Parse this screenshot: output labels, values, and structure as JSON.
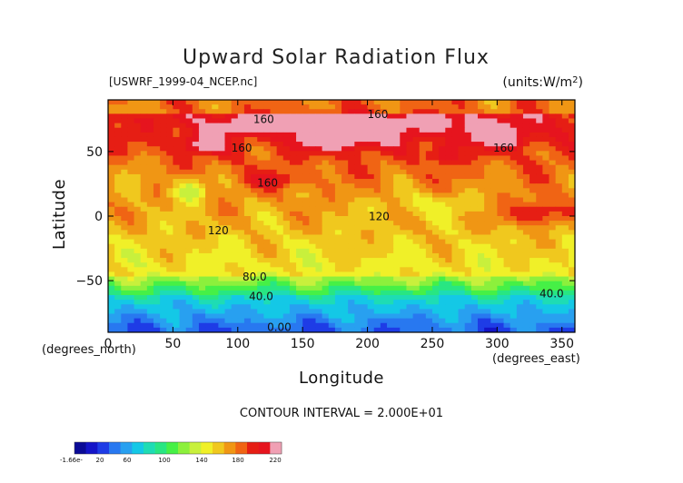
{
  "chart_data": {
    "type": "heatmap",
    "title": "Upward Solar Radiation Flux",
    "subtitle_left": "[USWRF_1999-04_NCEP.nc]",
    "subtitle_right": "(units:W/m^2)",
    "xlabel": "Longitude",
    "ylabel": "Latitude",
    "x_unit_label": "(degrees_east)",
    "y_unit_label": "(degrees_north)",
    "xlim": [
      0,
      360
    ],
    "ylim": [
      -90,
      90
    ],
    "x_ticks": [
      0,
      50,
      100,
      150,
      200,
      250,
      300,
      350
    ],
    "x_tick_labels": [
      "0",
      "50",
      "100",
      "150",
      "200",
      "250",
      "300",
      "350"
    ],
    "y_ticks": [
      -50,
      0,
      50
    ],
    "y_tick_labels": [
      "−50",
      "0",
      "50"
    ],
    "contour_interval_text": "CONTOUR INTERVAL = 2.000E+01",
    "contour_labels": [
      {
        "text": "160",
        "lon": 120,
        "lat": 72
      },
      {
        "text": "160",
        "lon": 208,
        "lat": 76
      },
      {
        "text": "160",
        "lon": 103,
        "lat": 50
      },
      {
        "text": "160",
        "lon": 123,
        "lat": 23
      },
      {
        "text": "160",
        "lon": 305,
        "lat": 50
      },
      {
        "text": "120",
        "lon": 209,
        "lat": -3
      },
      {
        "text": "120",
        "lon": 85,
        "lat": -14
      },
      {
        "text": "80.0",
        "lon": 113,
        "lat": -50
      },
      {
        "text": "40.0",
        "lon": 118,
        "lat": -65
      },
      {
        "text": "40.0",
        "lon": 342,
        "lat": -63
      },
      {
        "text": "0.00",
        "lon": 132,
        "lat": -89
      }
    ],
    "colorbar": {
      "min_label": "-1.66e-",
      "tick_labels": [
        "20",
        "60",
        "100",
        "140",
        "180",
        "220"
      ],
      "colors": [
        "#0a0a96",
        "#1414c8",
        "#1e3ce6",
        "#2878f0",
        "#28a0f0",
        "#14c8e6",
        "#1edcb4",
        "#28e682",
        "#46f046",
        "#8cf03c",
        "#c8f03c",
        "#f0f028",
        "#f0c81e",
        "#f09614",
        "#f06414",
        "#e61e14",
        "#e6141e",
        "#f0a0b4"
      ]
    }
  }
}
